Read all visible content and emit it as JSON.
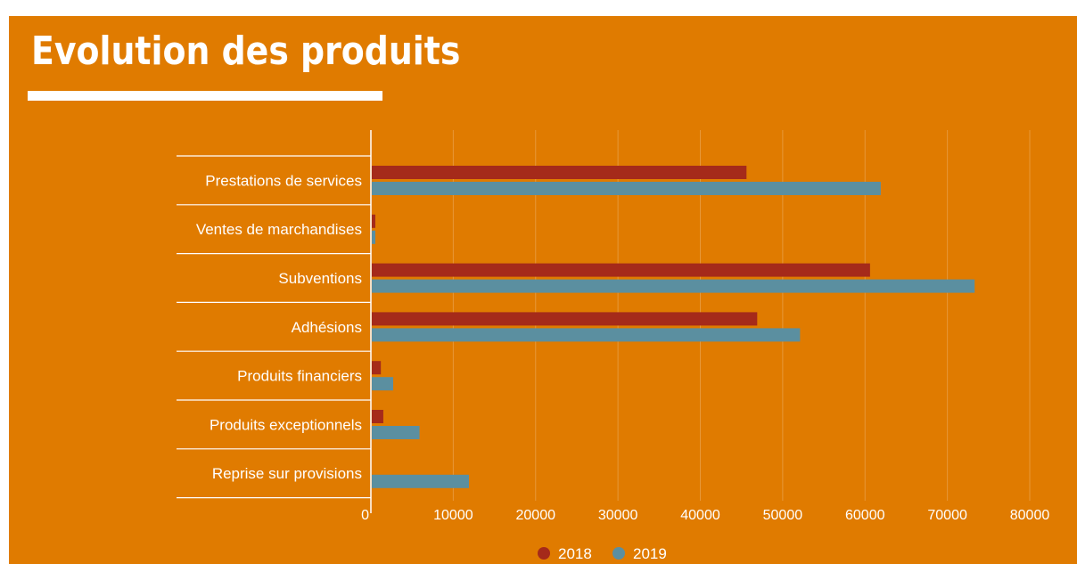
{
  "header": {
    "title": "Evolution des produits"
  },
  "colors": {
    "background": "#e07b00",
    "series_2018": "#a52a1a",
    "series_2019": "#5b8fa0",
    "text": "#ffffff"
  },
  "chart_data": {
    "type": "bar",
    "orientation": "horizontal",
    "title": "",
    "xlabel": "",
    "ylabel": "",
    "categories": [
      "Prestations de services",
      "Ventes de marchandises",
      "Subventions",
      "Adhésions",
      "Produits financiers",
      "Produits exceptionnels",
      "Reprise sur provisions"
    ],
    "series": [
      {
        "name": "2018",
        "color": "#a52a1a",
        "values": [
          45500,
          400,
          60500,
          46800,
          1100,
          1400,
          0
        ]
      },
      {
        "name": "2019",
        "color": "#5b8fa0",
        "values": [
          61800,
          400,
          73200,
          52000,
          2600,
          5800,
          11800
        ]
      }
    ],
    "xlim": [
      0,
      80000
    ],
    "xticks": [
      "0",
      "10000",
      "20000",
      "30000",
      "40000",
      "50000",
      "60000",
      "70000",
      "80000"
    ],
    "grid": true,
    "legend_position": "bottom"
  }
}
